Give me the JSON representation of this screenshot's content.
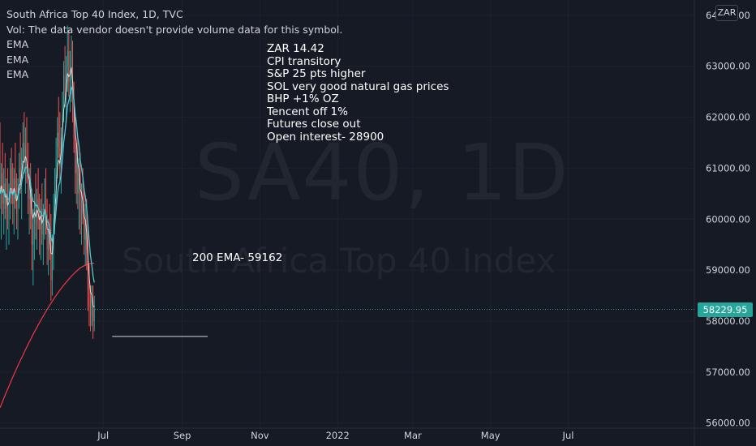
{
  "header": {
    "title": "South Africa Top 40 Index, 1D, TVC",
    "volume_note": "Vol: The data vendor doesn't provide volume data for this symbol.",
    "indicators": [
      "EMA",
      "EMA",
      "EMA"
    ]
  },
  "watermark": {
    "symbol": "SA40, 1D",
    "name": "South Africa Top 40 Index"
  },
  "currency": "ZAR",
  "last_price_label": "58229.95",
  "notes": [
    "ZAR 14.42",
    "CPI transitory",
    "S&P 25 pts higher",
    "SOL very good natural gas prices",
    "BHP +1% OZ",
    "Tencent off 1%",
    "Futures close out",
    "Open interest-  28900"
  ],
  "ema_annotation": "200 EMA- 59162",
  "colors": {
    "background": "#161a25",
    "up": "#26a69a",
    "down": "#ef5350",
    "ema_short": "#ffffff",
    "ema_mid": "#4ec9d4",
    "ema_long": "#f23645",
    "grid": "#1e222d",
    "text": "#d1d4dc"
  },
  "chart_data": {
    "type": "candlestick",
    "title": "South Africa Top 40 Index, 1D, TVC",
    "ylim": [
      55900,
      64300
    ],
    "y_ticks": [
      56000,
      57000,
      58000,
      59000,
      60000,
      61000,
      62000,
      63000,
      64000
    ],
    "y_tick_labels": [
      "56000.00",
      "57000.00",
      "58000.00",
      "59000.00",
      "60000.00",
      "61000.00",
      "62000.00",
      "63000.00",
      "64000.00"
    ],
    "x_ticks": [
      {
        "label": "Jul",
        "day": 81
      },
      {
        "label": "Sep",
        "day": 143
      },
      {
        "label": "Nov",
        "day": 204
      },
      {
        "label": "2022",
        "day": 265
      },
      {
        "label": "Mar",
        "day": 324
      },
      {
        "label": "May",
        "day": 385
      },
      {
        "label": "Jul",
        "day": 446
      }
    ],
    "x_range_days": [
      0,
      545
    ],
    "last_price": 58229.95,
    "support_line": {
      "start_day": 88,
      "end_day": 163,
      "value": 57700
    },
    "ohlc": [
      {
        "d": 0,
        "o": 61200,
        "h": 61900,
        "l": 60200,
        "c": 60500
      },
      {
        "d": 1,
        "o": 60500,
        "h": 61100,
        "l": 59600,
        "c": 60900
      },
      {
        "d": 2,
        "o": 60900,
        "h": 61500,
        "l": 60100,
        "c": 60300
      },
      {
        "d": 3,
        "o": 60300,
        "h": 61000,
        "l": 59700,
        "c": 60700
      },
      {
        "d": 4,
        "o": 60700,
        "h": 61300,
        "l": 60000,
        "c": 60200
      },
      {
        "d": 5,
        "o": 60200,
        "h": 60800,
        "l": 59400,
        "c": 60500
      },
      {
        "d": 6,
        "o": 60500,
        "h": 61000,
        "l": 59800,
        "c": 60000
      },
      {
        "d": 7,
        "o": 60000,
        "h": 60700,
        "l": 59500,
        "c": 60400
      },
      {
        "d": 8,
        "o": 60400,
        "h": 61200,
        "l": 60000,
        "c": 61000
      },
      {
        "d": 9,
        "o": 61000,
        "h": 61400,
        "l": 60300,
        "c": 60600
      },
      {
        "d": 10,
        "o": 60600,
        "h": 61100,
        "l": 59900,
        "c": 60300
      },
      {
        "d": 11,
        "o": 60300,
        "h": 61000,
        "l": 59700,
        "c": 60800
      },
      {
        "d": 12,
        "o": 60800,
        "h": 61500,
        "l": 60200,
        "c": 60400
      },
      {
        "d": 13,
        "o": 60400,
        "h": 60900,
        "l": 59800,
        "c": 60100
      },
      {
        "d": 14,
        "o": 60100,
        "h": 60800,
        "l": 59600,
        "c": 60600
      },
      {
        "d": 15,
        "o": 60600,
        "h": 61300,
        "l": 60200,
        "c": 61000
      },
      {
        "d": 16,
        "o": 61000,
        "h": 61700,
        "l": 60500,
        "c": 60700
      },
      {
        "d": 17,
        "o": 60700,
        "h": 61400,
        "l": 60000,
        "c": 61200
      },
      {
        "d": 18,
        "o": 61200,
        "h": 61900,
        "l": 60800,
        "c": 61500
      },
      {
        "d": 19,
        "o": 61500,
        "h": 62100,
        "l": 60900,
        "c": 61100
      },
      {
        "d": 20,
        "o": 61100,
        "h": 61800,
        "l": 60500,
        "c": 61400
      },
      {
        "d": 21,
        "o": 61400,
        "h": 62000,
        "l": 60700,
        "c": 61000
      },
      {
        "d": 22,
        "o": 61000,
        "h": 61500,
        "l": 60100,
        "c": 60400
      },
      {
        "d": 23,
        "o": 60400,
        "h": 61000,
        "l": 59700,
        "c": 60700
      },
      {
        "d": 24,
        "o": 60700,
        "h": 61100,
        "l": 59800,
        "c": 60100
      },
      {
        "d": 25,
        "o": 60100,
        "h": 60600,
        "l": 59000,
        "c": 59500
      },
      {
        "d": 26,
        "o": 59500,
        "h": 60200,
        "l": 58700,
        "c": 59900
      },
      {
        "d": 27,
        "o": 59900,
        "h": 60500,
        "l": 59200,
        "c": 60300
      },
      {
        "d": 28,
        "o": 60300,
        "h": 60900,
        "l": 59600,
        "c": 59900
      },
      {
        "d": 29,
        "o": 59900,
        "h": 60600,
        "l": 59400,
        "c": 60400
      },
      {
        "d": 30,
        "o": 60400,
        "h": 61000,
        "l": 59800,
        "c": 60000
      },
      {
        "d": 31,
        "o": 60000,
        "h": 60500,
        "l": 59300,
        "c": 59800
      },
      {
        "d": 32,
        "o": 59800,
        "h": 60400,
        "l": 59200,
        "c": 60200
      },
      {
        "d": 33,
        "o": 60200,
        "h": 60700,
        "l": 59500,
        "c": 59700
      },
      {
        "d": 34,
        "o": 59700,
        "h": 60300,
        "l": 59100,
        "c": 60100
      },
      {
        "d": 35,
        "o": 60100,
        "h": 60800,
        "l": 59600,
        "c": 60500
      },
      {
        "d": 36,
        "o": 60500,
        "h": 61000,
        "l": 59700,
        "c": 59900
      },
      {
        "d": 37,
        "o": 59900,
        "h": 60400,
        "l": 59100,
        "c": 59400
      },
      {
        "d": 38,
        "o": 59400,
        "h": 60000,
        "l": 58900,
        "c": 59800
      },
      {
        "d": 39,
        "o": 59800,
        "h": 60300,
        "l": 59200,
        "c": 59500
      },
      {
        "d": 40,
        "o": 59500,
        "h": 60100,
        "l": 58400,
        "c": 58800
      },
      {
        "d": 41,
        "o": 58800,
        "h": 59700,
        "l": 58500,
        "c": 59300
      },
      {
        "d": 42,
        "o": 59300,
        "h": 60500,
        "l": 59000,
        "c": 60200
      },
      {
        "d": 43,
        "o": 60200,
        "h": 61000,
        "l": 59700,
        "c": 60700
      },
      {
        "d": 44,
        "o": 60700,
        "h": 61600,
        "l": 60300,
        "c": 61200
      },
      {
        "d": 45,
        "o": 61200,
        "h": 62000,
        "l": 60800,
        "c": 61700
      },
      {
        "d": 46,
        "o": 61700,
        "h": 62400,
        "l": 61200,
        "c": 61400
      },
      {
        "d": 47,
        "o": 61400,
        "h": 62100,
        "l": 60700,
        "c": 61000
      },
      {
        "d": 48,
        "o": 61000,
        "h": 61800,
        "l": 60500,
        "c": 61600
      },
      {
        "d": 49,
        "o": 61600,
        "h": 62500,
        "l": 61200,
        "c": 62300
      },
      {
        "d": 50,
        "o": 62300,
        "h": 63100,
        "l": 61900,
        "c": 62800
      },
      {
        "d": 51,
        "o": 62800,
        "h": 63400,
        "l": 62200,
        "c": 62500
      },
      {
        "d": 52,
        "o": 62500,
        "h": 63200,
        "l": 61900,
        "c": 63000
      },
      {
        "d": 53,
        "o": 63000,
        "h": 63800,
        "l": 62500,
        "c": 63300
      },
      {
        "d": 54,
        "o": 63300,
        "h": 63700,
        "l": 62400,
        "c": 62700
      },
      {
        "d": 55,
        "o": 62700,
        "h": 63300,
        "l": 62100,
        "c": 62900
      },
      {
        "d": 56,
        "o": 62900,
        "h": 63600,
        "l": 62300,
        "c": 63200
      },
      {
        "d": 57,
        "o": 63200,
        "h": 63500,
        "l": 61900,
        "c": 62300
      },
      {
        "d": 58,
        "o": 62300,
        "h": 62700,
        "l": 61300,
        "c": 61600
      },
      {
        "d": 59,
        "o": 61600,
        "h": 62000,
        "l": 60500,
        "c": 60900
      },
      {
        "d": 60,
        "o": 60900,
        "h": 61500,
        "l": 60300,
        "c": 61200
      },
      {
        "d": 61,
        "o": 61200,
        "h": 61600,
        "l": 60200,
        "c": 60500
      },
      {
        "d": 62,
        "o": 60500,
        "h": 61200,
        "l": 59800,
        "c": 60800
      },
      {
        "d": 63,
        "o": 60800,
        "h": 61300,
        "l": 59700,
        "c": 60000
      },
      {
        "d": 64,
        "o": 60000,
        "h": 60700,
        "l": 59500,
        "c": 60400
      },
      {
        "d": 65,
        "o": 60400,
        "h": 61000,
        "l": 59900,
        "c": 60100
      },
      {
        "d": 66,
        "o": 60100,
        "h": 60600,
        "l": 59300,
        "c": 59600
      },
      {
        "d": 67,
        "o": 59600,
        "h": 60300,
        "l": 59100,
        "c": 59900
      },
      {
        "d": 68,
        "o": 59900,
        "h": 60400,
        "l": 59000,
        "c": 59400
      },
      {
        "d": 69,
        "o": 59400,
        "h": 59900,
        "l": 58200,
        "c": 58600
      },
      {
        "d": 70,
        "o": 58600,
        "h": 59100,
        "l": 57900,
        "c": 58300
      },
      {
        "d": 71,
        "o": 58300,
        "h": 58700,
        "l": 57800,
        "c": 58100
      },
      {
        "d": 72,
        "o": 58100,
        "h": 58700,
        "l": 57900,
        "c": 58400
      },
      {
        "d": 73,
        "o": 58400,
        "h": 58700,
        "l": 57650,
        "c": 58000
      },
      {
        "d": 74,
        "o": 58000,
        "h": 58500,
        "l": 57800,
        "c": 58230
      }
    ]
  }
}
